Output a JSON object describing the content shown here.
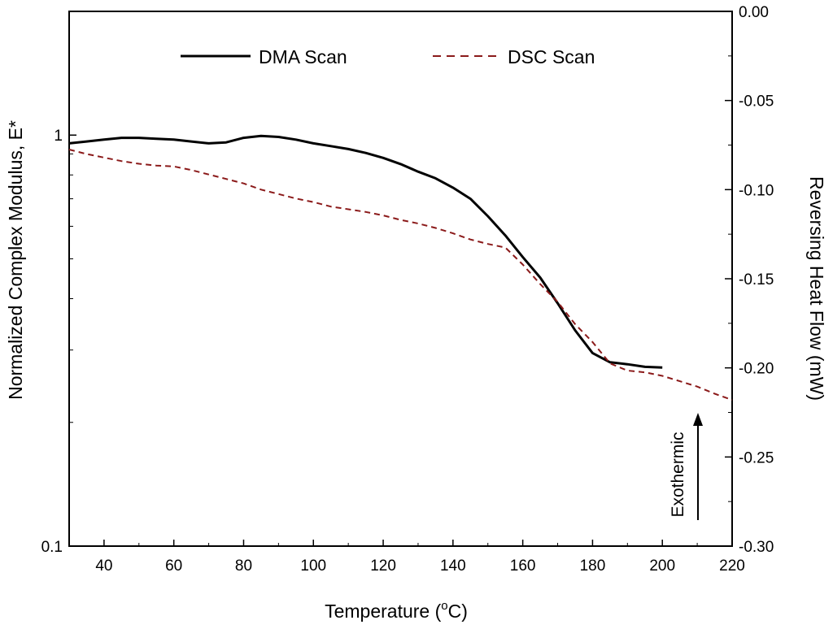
{
  "chart_data": {
    "type": "line",
    "title": "",
    "xlabel_main": "Temperature (",
    "xlabel_sup": "o",
    "xlabel_unit": "C)",
    "ylabel_left": "Normalized Complex Modulus, E*",
    "ylabel_right": "Reversing Heat Flow (mW)",
    "xlim": [
      30,
      220
    ],
    "ylim_left": [
      0.1,
      2
    ],
    "ylim_right": [
      -0.3,
      0.0
    ],
    "yscale_left": "log",
    "yscale_right": "linear",
    "x_ticks": [
      "40",
      "60",
      "80",
      "100",
      "120",
      "140",
      "160",
      "180",
      "200",
      "220"
    ],
    "y_left_ticks": [
      "0.1",
      "1"
    ],
    "y_right_ticks": [
      "0.00",
      "-0.05",
      "-0.10",
      "-0.15",
      "-0.20",
      "-0.25",
      "-0.30"
    ],
    "legend_position": "top",
    "annotation": "Exothermic",
    "series": [
      {
        "name": "DMA Scan",
        "axis": "left",
        "style": "solid",
        "color": "#000000",
        "x": [
          30,
          35,
          40,
          45,
          50,
          55,
          60,
          65,
          70,
          75,
          80,
          85,
          90,
          95,
          100,
          105,
          110,
          115,
          120,
          125,
          130,
          135,
          140,
          145,
          150,
          155,
          160,
          165,
          170,
          175,
          180,
          185,
          190,
          195,
          200
        ],
        "y": [
          0.955,
          0.965,
          0.975,
          0.985,
          0.985,
          0.98,
          0.975,
          0.965,
          0.955,
          0.96,
          0.985,
          0.995,
          0.99,
          0.975,
          0.955,
          0.94,
          0.925,
          0.905,
          0.88,
          0.85,
          0.815,
          0.785,
          0.745,
          0.7,
          0.635,
          0.57,
          0.505,
          0.45,
          0.39,
          0.335,
          0.295,
          0.28,
          0.277,
          0.273,
          0.272
        ]
      },
      {
        "name": "DSC Scan",
        "axis": "right",
        "style": "dashed",
        "color": "#8b1a1a",
        "x": [
          30,
          35,
          40,
          45,
          50,
          55,
          60,
          65,
          70,
          75,
          80,
          85,
          90,
          95,
          100,
          105,
          110,
          115,
          120,
          125,
          130,
          135,
          140,
          145,
          150,
          155,
          160,
          165,
          170,
          175,
          180,
          185,
          190,
          195,
          200,
          205,
          210,
          215,
          220
        ],
        "y": [
          -0.0775,
          -0.08,
          -0.082,
          -0.084,
          -0.0855,
          -0.0865,
          -0.087,
          -0.089,
          -0.0915,
          -0.094,
          -0.0965,
          -0.1,
          -0.1025,
          -0.105,
          -0.107,
          -0.1095,
          -0.111,
          -0.1125,
          -0.1145,
          -0.117,
          -0.119,
          -0.1215,
          -0.1245,
          -0.128,
          -0.1305,
          -0.1325,
          -0.142,
          -0.153,
          -0.163,
          -0.1755,
          -0.1855,
          -0.1975,
          -0.2015,
          -0.2025,
          -0.2045,
          -0.2075,
          -0.2105,
          -0.2145,
          -0.218
        ]
      }
    ]
  }
}
